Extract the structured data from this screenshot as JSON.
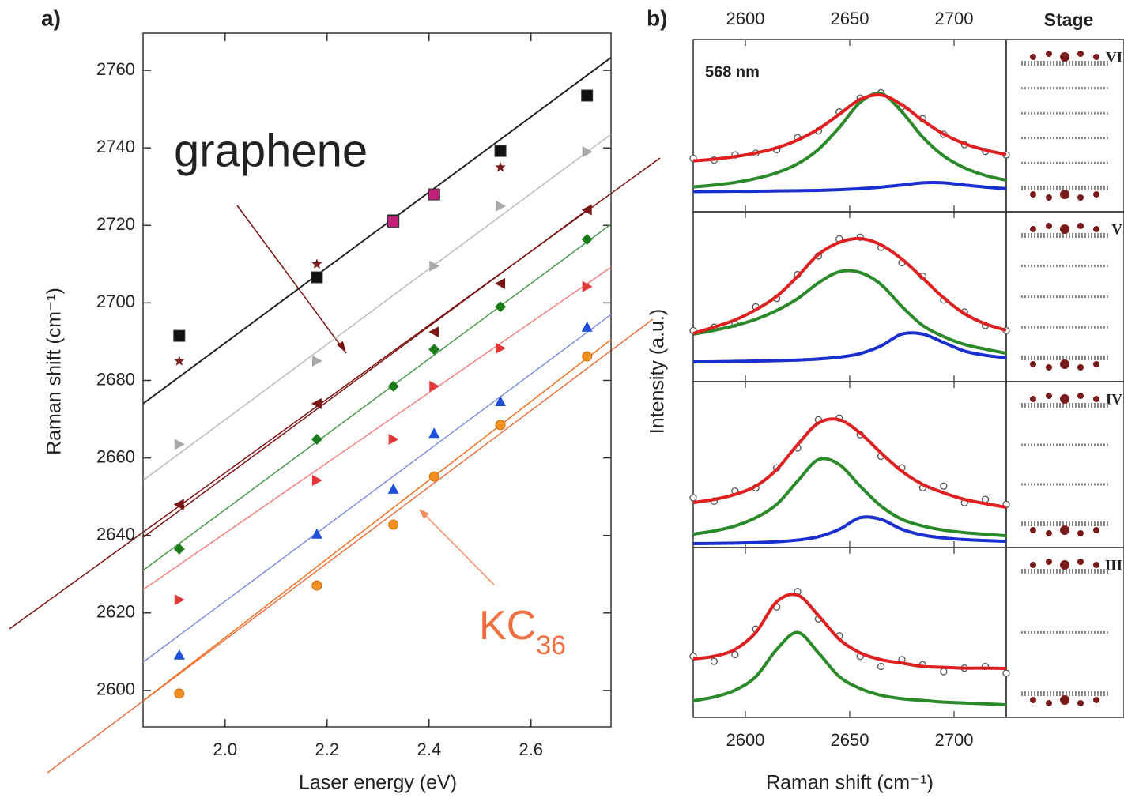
{
  "chart_data": [
    {
      "type": "scatter",
      "title": "a)",
      "x_label": "Laser energy (eV)",
      "y_label": "Raman shift (cm⁻¹)",
      "xlim": [
        1.839,
        2.757
      ],
      "ylim": [
        2590.6,
        2769.6
      ],
      "xticks": [
        {
          "value": 2,
          "label": "2.0"
        },
        2.2,
        2.4,
        2.6
      ],
      "yticks": [
        2600,
        2620,
        2640,
        2660,
        2680,
        2700,
        2720,
        2740,
        2760
      ],
      "x": [
        1.91,
        2.18,
        2.33,
        2.41,
        2.54,
        2.71
      ],
      "series": [
        {
          "marker": "square",
          "color": "#111111",
          "values": [
            2691.5,
            2706.6,
            2721.3,
            2728,
            2739.2,
            2753.5
          ]
        },
        {
          "marker": "star",
          "color": "#7b1f1f",
          "values": [
            2685,
            2710,
            null,
            null,
            2735,
            null
          ]
        },
        {
          "marker": "square",
          "color": "#c0207a",
          "values": [
            null,
            null,
            2721,
            2728,
            null,
            null
          ]
        },
        {
          "marker": "triangle-right",
          "color": "#a8a8a8",
          "values": [
            2663.5,
            2685,
            null,
            2709.5,
            2725,
            2739
          ]
        },
        {
          "marker": "triangle-left",
          "color": "#7b1515",
          "values": [
            2648,
            2674,
            null,
            2692.5,
            2705,
            2724
          ]
        },
        {
          "marker": "diamond",
          "color": "#1a7a1a",
          "values": [
            2636.5,
            2664.8,
            2678.5,
            2688,
            2699,
            2716.4
          ]
        },
        {
          "marker": "triangle-right",
          "color": "#e03838",
          "values": [
            2623.4,
            2654.2,
            2664.8,
            2678.5,
            2688.3,
            2704.2
          ]
        },
        {
          "marker": "triangle-up",
          "color": "#1d4fd8",
          "values": [
            2609.2,
            2640.4,
            2652,
            2666.4,
            2674.6,
            2693.8
          ]
        },
        {
          "marker": "circle",
          "color": "#f09020",
          "values": [
            2599.2,
            2627.1,
            2642.8,
            2655.2,
            2668.5,
            2686.2
          ]
        }
      ],
      "fits": [
        {
          "color": "#222222",
          "x": [
            1.839,
            2.757
          ],
          "values": [
            2674,
            2763.3
          ]
        },
        {
          "color": "#bbbbbb",
          "x": [
            1.839,
            2.757
          ],
          "values": [
            2654.2,
            2743.5
          ]
        },
        {
          "color": "#7b1515",
          "x": [
            1.839,
            2.71
          ],
          "values": [
            2639.5,
            2724
          ]
        },
        {
          "color": "#4a9a4a",
          "x": [
            1.839,
            2.757
          ],
          "values": [
            2631,
            2720.3
          ]
        },
        {
          "color": "#f08080",
          "x": [
            1.839,
            2.757
          ],
          "values": [
            2626,
            2709.2
          ]
        },
        {
          "color": "#8090e0",
          "x": [
            1.839,
            2.757
          ],
          "values": [
            2607.3,
            2697
          ]
        },
        {
          "color": "#f07020",
          "x": [
            1.839,
            2.757
          ],
          "values": [
            2597.3,
            2690.5
          ]
        }
      ],
      "annotations": [
        {
          "text": "graphene",
          "color": "#7b1010"
        },
        {
          "text": "KC",
          "sub": "36",
          "color": "#f07040"
        }
      ]
    },
    {
      "type": "line",
      "title": "b)",
      "x_label": "Raman shift (cm⁻¹)",
      "y_label": "Intensity (a.u.)",
      "stage_label": "Stage",
      "xlim": [
        2575,
        2725
      ],
      "xticks": [
        2600,
        2650,
        2700
      ],
      "x": [
        2575,
        2585,
        2595,
        2605,
        2615,
        2625,
        2635,
        2645,
        2655,
        2665,
        2675,
        2685,
        2695,
        2705,
        2715,
        2725
      ],
      "panels": [
        {
          "stage": "VI",
          "label": "568 nm",
          "ylim": [
            0,
            1
          ],
          "points": {
            "color": "#555555",
            "values": [
              0.31,
              0.3,
              0.33,
              0.34,
              0.36,
              0.43,
              0.47,
              0.58,
              0.66,
              0.69,
              0.61,
              0.54,
              0.45,
              0.39,
              0.35,
              0.33
            ]
          },
          "series": [
            {
              "color": "#2a8a2a",
              "values": [
                0.144,
                0.155,
                0.17,
                0.193,
                0.226,
                0.278,
                0.362,
                0.489,
                0.635,
                0.686,
                0.58,
                0.433,
                0.324,
                0.255,
                0.211,
                0.183
              ]
            },
            {
              "color": "#1a2fd0",
              "values": [
                0.117,
                0.118,
                0.119,
                0.119,
                0.121,
                0.122,
                0.124,
                0.128,
                0.134,
                0.143,
                0.155,
                0.168,
                0.168,
                0.155,
                0.143,
                0.134
              ]
            },
            {
              "color": "#e02020",
              "values": [
                0.295,
                0.305,
                0.32,
                0.341,
                0.371,
                0.416,
                0.48,
                0.566,
                0.652,
                0.678,
                0.621,
                0.53,
                0.451,
                0.395,
                0.358,
                0.332
              ]
            }
          ]
        },
        {
          "stage": "V",
          "ylim": [
            0,
            1
          ],
          "points": {
            "color": "#555555",
            "values": [
              0.3,
              0.32,
              0.34,
              0.44,
              0.49,
              0.63,
              0.74,
              0.84,
              0.85,
              0.79,
              0.7,
              0.62,
              0.48,
              0.41,
              0.33,
              0.3
            ]
          },
          "series": [
            {
              "color": "#2a8a2a",
              "values": [
                0.279,
                0.302,
                0.33,
                0.367,
                0.419,
                0.488,
                0.581,
                0.647,
                0.642,
                0.572,
                0.442,
                0.33,
                0.265,
                0.219,
                0.191,
                0.167
              ]
            },
            {
              "color": "#1a2fd0",
              "values": [
                0.116,
                0.117,
                0.119,
                0.121,
                0.123,
                0.127,
                0.133,
                0.144,
                0.165,
                0.21,
                0.28,
                0.28,
                0.23,
                0.18,
                0.155,
                0.14
              ]
            },
            {
              "color": "#e02020",
              "values": [
                0.284,
                0.321,
                0.363,
                0.423,
                0.502,
                0.619,
                0.749,
                0.819,
                0.842,
                0.805,
                0.721,
                0.609,
                0.493,
                0.4,
                0.34,
                0.302
              ]
            }
          ]
        },
        {
          "stage": "IV",
          "ylim": [
            0,
            1
          ],
          "points": {
            "color": "#555555",
            "values": [
              0.3,
              0.28,
              0.34,
              0.36,
              0.48,
              0.6,
              0.77,
              0.78,
              0.68,
              0.55,
              0.48,
              0.36,
              0.37,
              0.27,
              0.29,
              0.26
            ]
          },
          "series": [
            {
              "color": "#2a8a2a",
              "values": [
                0.081,
                0.1,
                0.13,
                0.18,
                0.26,
                0.4,
                0.53,
                0.5,
                0.37,
                0.25,
                0.17,
                0.13,
                0.105,
                0.09,
                0.08,
                0.071
              ]
            },
            {
              "color": "#1a2fd0",
              "values": [
                0.024,
                0.025,
                0.027,
                0.03,
                0.035,
                0.045,
                0.065,
                0.11,
                0.18,
                0.17,
                0.11,
                0.075,
                0.058,
                0.048,
                0.042,
                0.038
              ]
            },
            {
              "color": "#e02020",
              "values": [
                0.271,
                0.29,
                0.32,
                0.37,
                0.47,
                0.62,
                0.75,
                0.77,
                0.69,
                0.57,
                0.46,
                0.38,
                0.33,
                0.29,
                0.265,
                0.243
              ]
            }
          ]
        },
        {
          "stage": "III",
          "ylim": [
            0,
            1
          ],
          "points": {
            "color": "#555555",
            "values": [
              0.36,
              0.33,
              0.37,
              0.52,
              0.65,
              0.74,
              0.58,
              0.48,
              0.36,
              0.3,
              0.34,
              0.31,
              0.27,
              0.29,
              0.3,
              0.26
            ]
          },
          "series": [
            {
              "color": "#2a8a2a",
              "values": [
                0.098,
                0.12,
                0.16,
                0.24,
                0.4,
                0.5,
                0.38,
                0.24,
                0.17,
                0.13,
                0.11,
                0.1,
                0.09,
                0.085,
                0.08,
                0.074
              ]
            },
            {
              "color": "#e02020",
              "values": [
                0.344,
                0.36,
                0.4,
                0.5,
                0.68,
                0.72,
                0.6,
                0.46,
                0.38,
                0.34,
                0.32,
                0.3,
                0.295,
                0.29,
                0.29,
                0.288
              ]
            }
          ]
        }
      ]
    }
  ]
}
